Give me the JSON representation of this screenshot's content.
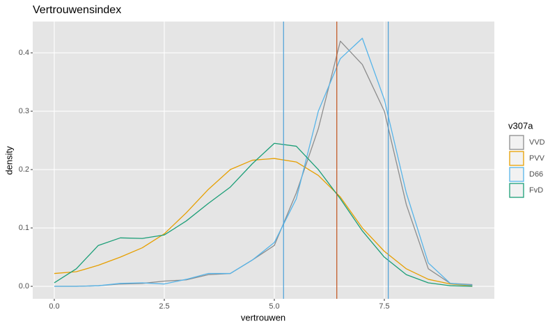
{
  "chart_data": {
    "type": "line",
    "title": "Vertrouwensindex",
    "x_label": "vertrouwen",
    "y_label": "density",
    "legend_title": "v307a",
    "legend_position": "right",
    "x": [
      0,
      0.5,
      1,
      1.5,
      2,
      2.5,
      3,
      3.5,
      4,
      4.5,
      5,
      5.5,
      6,
      6.5,
      7,
      7.5,
      8,
      8.5,
      9,
      9.5
    ],
    "series": [
      {
        "name": "VVD",
        "color": "#8c8c8c",
        "values": [
          0,
          0,
          0.001,
          0.004,
          0.005,
          0.009,
          0.011,
          0.02,
          0.022,
          0.045,
          0.07,
          0.16,
          0.27,
          0.42,
          0.38,
          0.3,
          0.14,
          0.03,
          0.005,
          0.003
        ]
      },
      {
        "name": "PVV",
        "color": "#e69f00",
        "values": [
          0.022,
          0.025,
          0.036,
          0.05,
          0.066,
          0.09,
          0.126,
          0.166,
          0.2,
          0.216,
          0.219,
          0.213,
          0.19,
          0.153,
          0.1,
          0.06,
          0.03,
          0.012,
          0.004,
          0.001
        ]
      },
      {
        "name": "D66",
        "color": "#56b4e9",
        "values": [
          0,
          0,
          0.001,
          0.005,
          0.006,
          0.004,
          0.012,
          0.022,
          0.022,
          0.045,
          0.075,
          0.15,
          0.3,
          0.39,
          0.425,
          0.32,
          0.16,
          0.04,
          0.005,
          0.002
        ]
      },
      {
        "name": "FvD",
        "color": "#1b9e77",
        "values": [
          0.006,
          0.03,
          0.07,
          0.083,
          0.082,
          0.088,
          0.112,
          0.142,
          0.17,
          0.21,
          0.245,
          0.24,
          0.2,
          0.15,
          0.095,
          0.05,
          0.02,
          0.006,
          0.001,
          0
        ]
      }
    ],
    "vlines": [
      {
        "value": 6.42,
        "color": "#c0501a"
      },
      {
        "value": 5.21,
        "color": "#4a9fd8"
      },
      {
        "value": 7.59,
        "color": "#4a9fd8"
      }
    ],
    "xlim": [
      -0.49,
      10.0
    ],
    "ylim": [
      -0.0214,
      0.4536
    ],
    "xticks": [
      {
        "value": 0,
        "label": "0.0"
      },
      2.5,
      {
        "value": 5,
        "label": "5.0"
      },
      7.5
    ],
    "yticks": [
      {
        "value": 0,
        "label": "0.0"
      },
      0.1,
      0.2,
      0.3,
      0.4
    ],
    "grid": true
  }
}
